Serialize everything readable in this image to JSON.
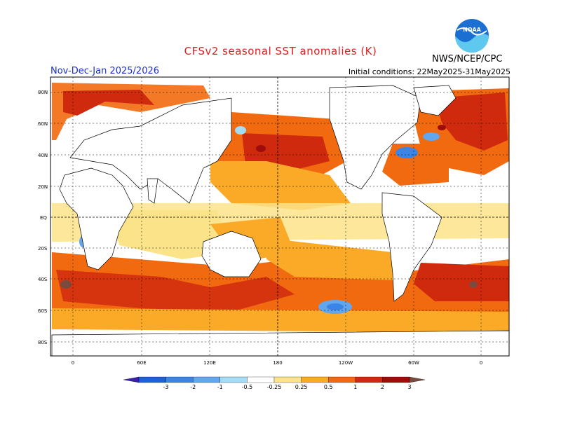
{
  "header": {
    "title": "CFSv2 seasonal SST anomalies (K)",
    "season": "Nov-Dec-Jan 2025/2026",
    "initial_conditions": "Initial conditions: 22May2025-31May2025",
    "agency": "NWS/NCEP/CPC",
    "logo": "noaa-logo",
    "logo_text": "NOAA"
  },
  "axes": {
    "lat_labels": [
      "80N",
      "60N",
      "40N",
      "20N",
      "EQ",
      "20S",
      "40S",
      "60S",
      "80S"
    ],
    "lon_labels": [
      "0",
      "60E",
      "120E",
      "180",
      "120W",
      "60W",
      "0"
    ]
  },
  "colorbar": {
    "labels": [
      "-3",
      "-2",
      "-1",
      "-0.5",
      "-0.25",
      "0.25",
      "0.5",
      "1",
      "2",
      "3"
    ],
    "colors": [
      "#3a1fb0",
      "#1f5fd8",
      "#3b85e8",
      "#62a6ee",
      "#a4dcf6",
      "#ffffff",
      "#fbe38a",
      "#fbaa28",
      "#f26a10",
      "#d02a0e",
      "#9e0c0c",
      "#7a4a3e"
    ]
  },
  "colors": {
    "title": "#e02020",
    "season": "#1a2fd0",
    "land": "#ffffff",
    "coast": "#000000"
  }
}
